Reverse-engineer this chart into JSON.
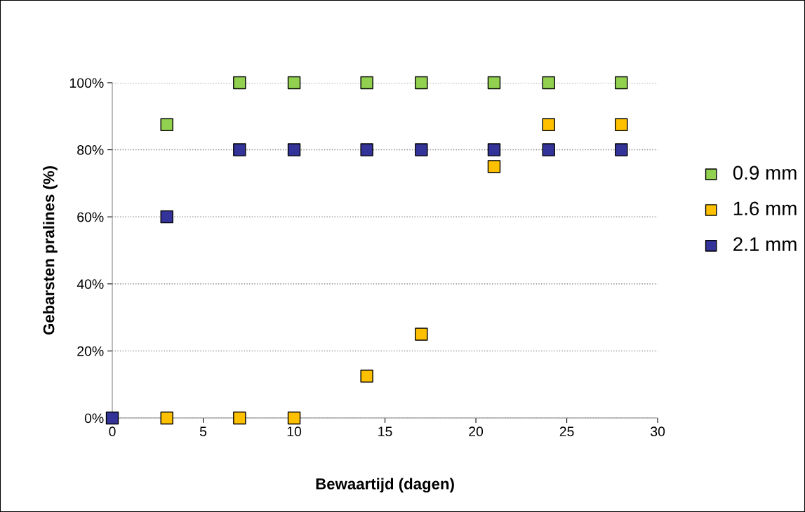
{
  "chart_data": {
    "type": "scatter",
    "xlabel": "Bewaartijd (dagen)",
    "ylabel": "Gebarsten pralines (%)",
    "x": [
      0,
      3,
      7,
      10,
      14,
      17,
      21,
      24,
      28
    ],
    "series": [
      {
        "name": "0.9 mm",
        "color": "#92d050",
        "values": [
          null,
          87.5,
          100,
          100,
          100,
          100,
          100,
          100,
          100
        ]
      },
      {
        "name": "1.6 mm",
        "color": "#ffc000",
        "values": [
          null,
          0,
          0,
          0,
          12.5,
          25,
          75,
          87.5,
          87.5
        ]
      },
      {
        "name": "2.1 mm",
        "color": "#333399",
        "values": [
          0,
          60,
          80,
          80,
          80,
          80,
          80,
          80,
          80
        ]
      }
    ],
    "xlim": [
      0,
      30
    ],
    "xticks": [
      0,
      5,
      10,
      15,
      20,
      25,
      30
    ],
    "ylim": [
      0,
      100
    ],
    "yticks": [
      {
        "value": 0,
        "label": "0%"
      },
      {
        "value": 20,
        "label": "20%"
      },
      {
        "value": 40,
        "label": "40%"
      },
      {
        "value": 60,
        "label": "60%"
      },
      {
        "value": 80,
        "label": "80%"
      },
      {
        "value": 100,
        "label": "100%"
      }
    ],
    "grid": "y",
    "legend": "right",
    "marker": "square"
  }
}
